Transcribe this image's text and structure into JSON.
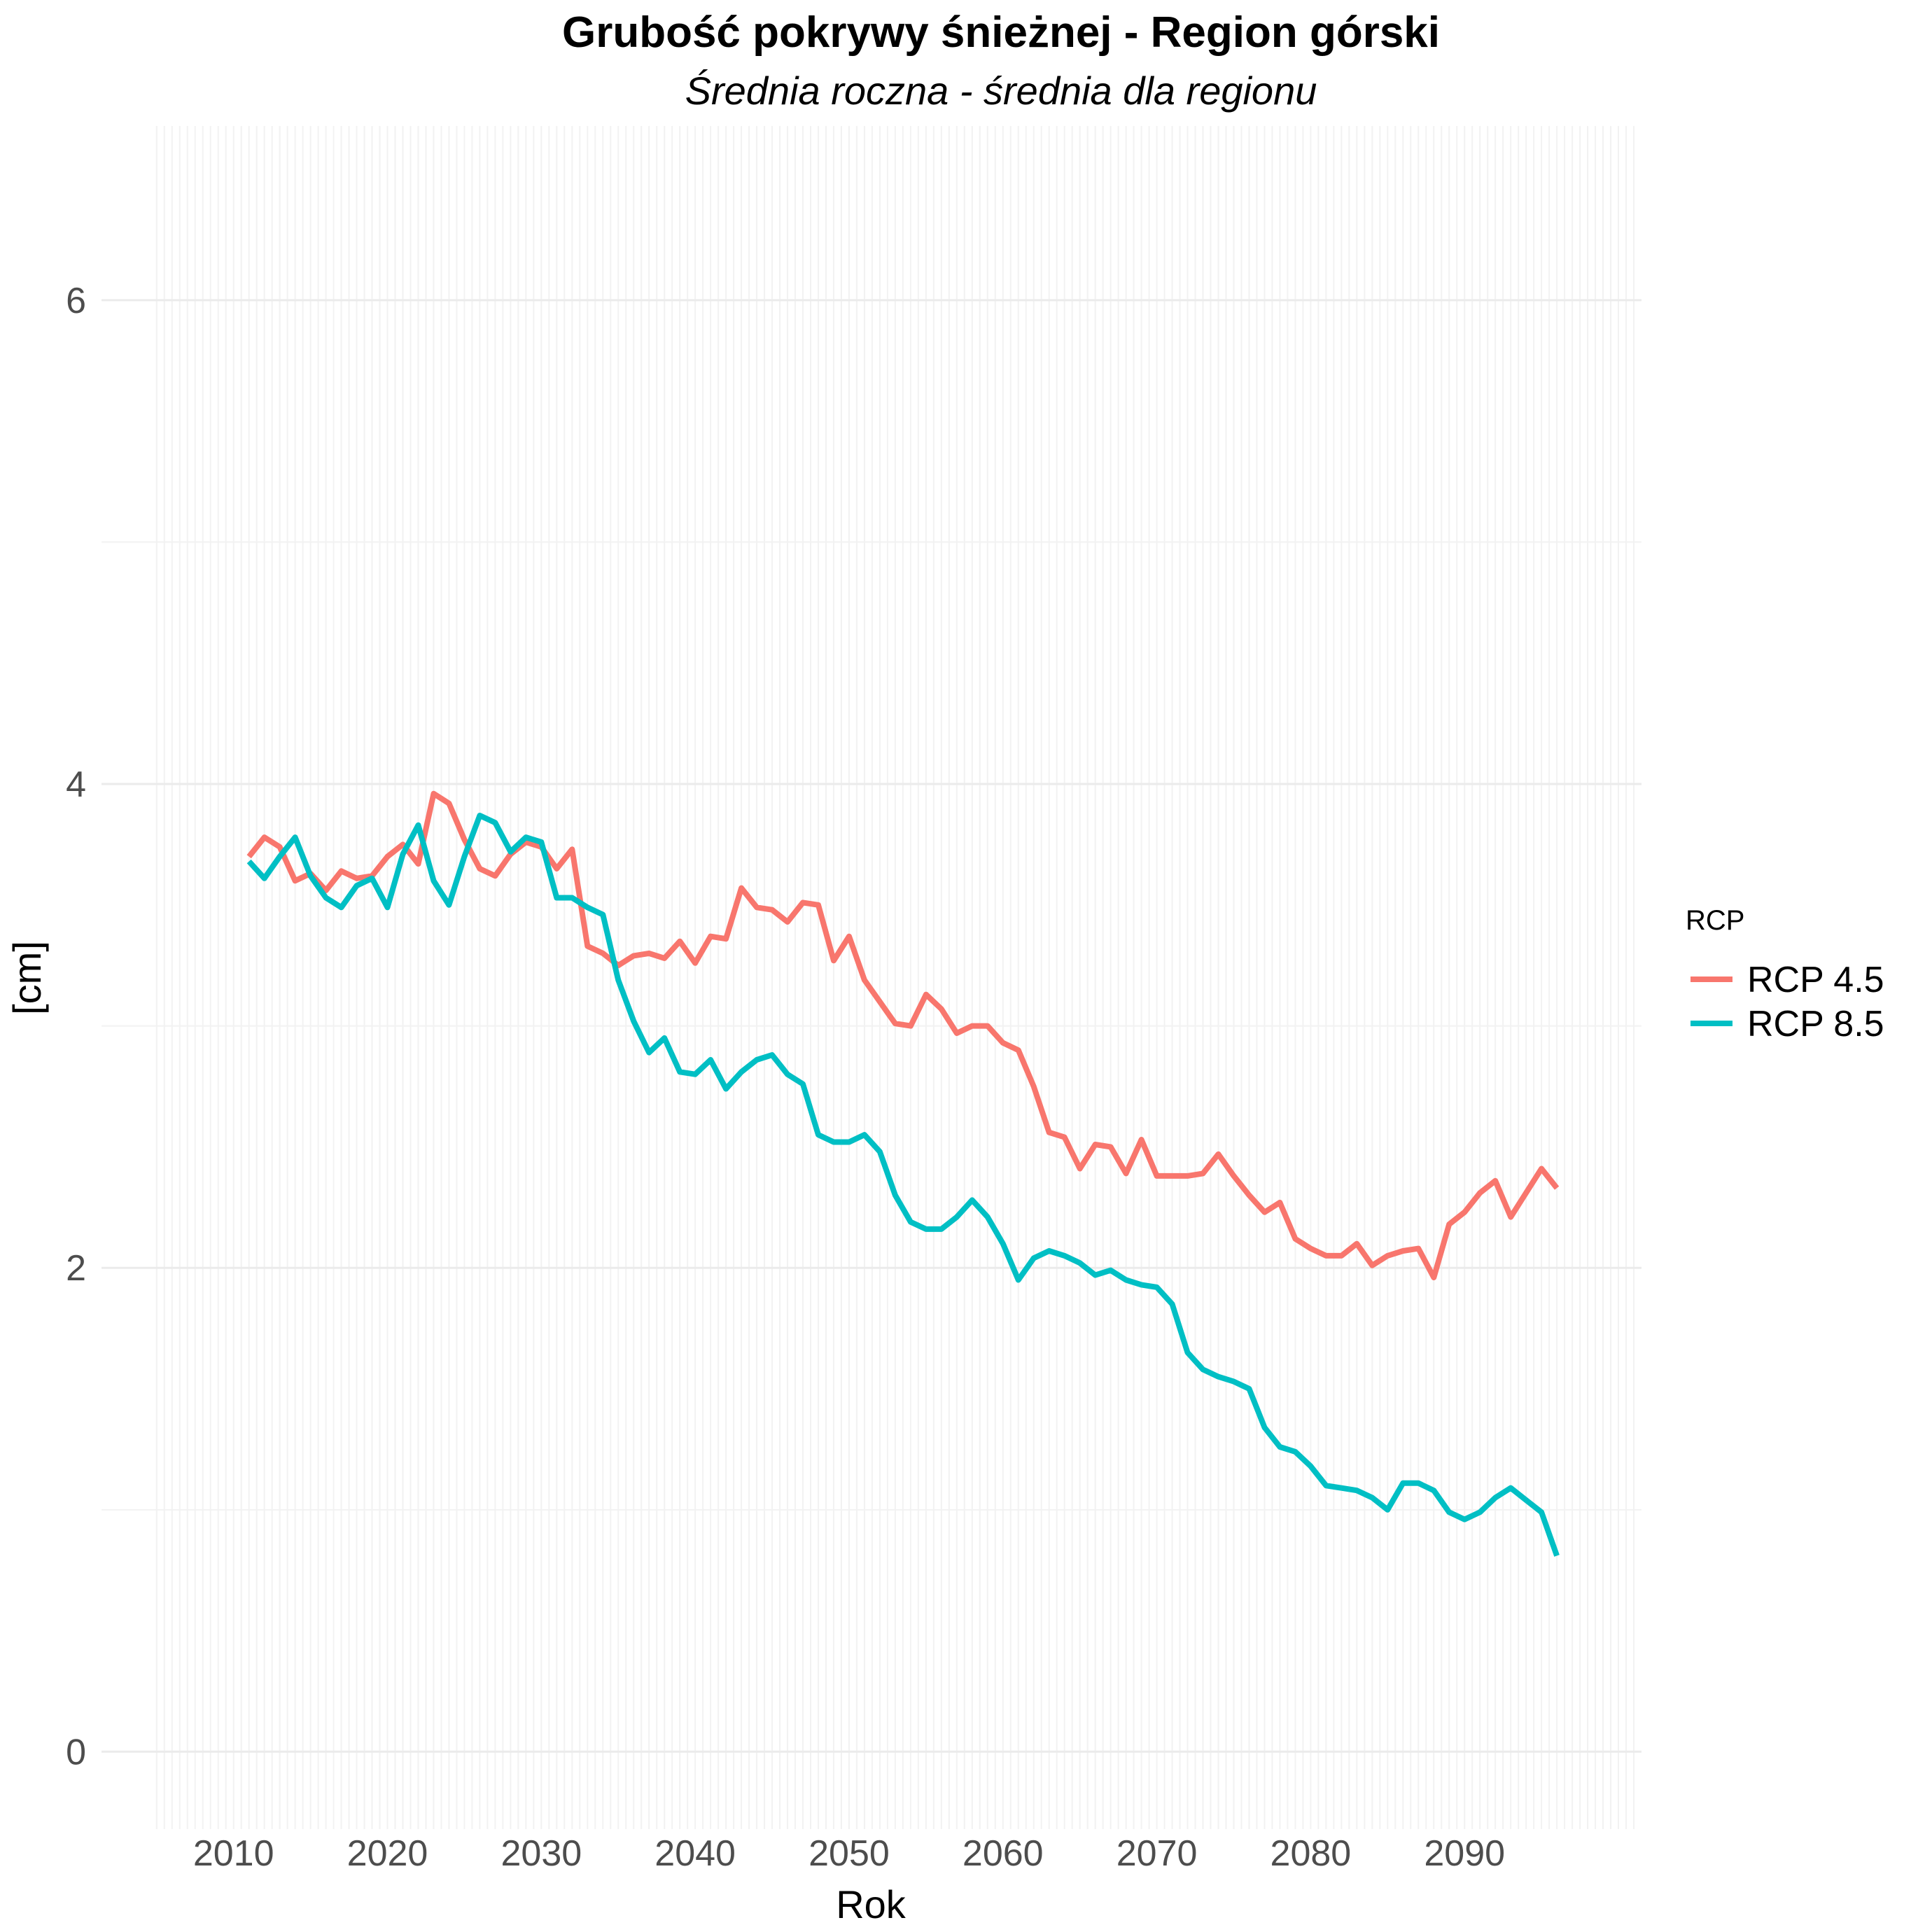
{
  "chart_data": {
    "type": "line",
    "title": "Grubość pokrywy śnieżnej - Region górski",
    "subtitle": "Średnia roczna - średnia dla regionu",
    "xlabel": "Rok",
    "ylabel": "[cm]",
    "xlim": [
      2004.6,
      2101.5
    ],
    "ylim": [
      -0.32,
      6.72
    ],
    "x_ticks": [
      2010,
      2020,
      2030,
      2040,
      2050,
      2060,
      2070,
      2080,
      2090
    ],
    "y_ticks": [
      0,
      2,
      4,
      6
    ],
    "grid": true,
    "legend": {
      "title": "RCP",
      "position": "right"
    },
    "x": [
      2011,
      2012,
      2013,
      2014,
      2015,
      2016,
      2017,
      2018,
      2019,
      2020,
      2021,
      2022,
      2023,
      2024,
      2025,
      2026,
      2027,
      2028,
      2029,
      2030,
      2031,
      2032,
      2033,
      2034,
      2035,
      2036,
      2037,
      2038,
      2039,
      2040,
      2041,
      2042,
      2043,
      2044,
      2045,
      2046,
      2047,
      2048,
      2049,
      2050,
      2051,
      2052,
      2053,
      2054,
      2055,
      2056,
      2057,
      2058,
      2059,
      2060,
      2061,
      2062,
      2063,
      2064,
      2065,
      2066,
      2067,
      2068,
      2069,
      2070,
      2071,
      2072,
      2073,
      2074,
      2075,
      2076,
      2077,
      2078,
      2079,
      2080,
      2081,
      2082,
      2083,
      2084,
      2085,
      2086,
      2087,
      2088,
      2089,
      2090,
      2091,
      2092,
      2093,
      2094,
      2095,
      2096
    ],
    "series": [
      {
        "name": "RCP 4.5",
        "color": "#f8766d",
        "values": [
          3.7,
          3.78,
          3.74,
          3.6,
          3.63,
          3.56,
          3.64,
          3.61,
          3.62,
          3.7,
          3.75,
          3.67,
          3.96,
          3.92,
          3.77,
          3.65,
          3.62,
          3.71,
          3.76,
          3.74,
          3.65,
          3.73,
          3.33,
          3.3,
          3.25,
          3.29,
          3.3,
          3.28,
          3.35,
          3.26,
          3.37,
          3.36,
          3.57,
          3.49,
          3.48,
          3.43,
          3.51,
          3.5,
          3.27,
          3.37,
          3.19,
          3.1,
          3.01,
          3.0,
          3.13,
          3.07,
          2.97,
          3.0,
          3.0,
          2.93,
          2.9,
          2.75,
          2.56,
          2.54,
          2.41,
          2.51,
          2.5,
          2.39,
          2.53,
          2.38,
          2.38,
          2.38,
          2.39,
          2.47,
          2.38,
          2.3,
          2.23,
          2.27,
          2.12,
          2.08,
          2.05,
          2.05,
          2.1,
          2.01,
          2.05,
          2.07,
          2.08,
          1.96,
          2.18,
          2.23,
          2.31,
          2.36,
          2.21,
          2.31,
          2.41,
          2.33
        ]
      },
      {
        "name": "RCP 8.5",
        "color": "#00bfc4",
        "values": [
          3.68,
          3.61,
          3.7,
          3.78,
          3.62,
          3.53,
          3.49,
          3.58,
          3.61,
          3.49,
          3.71,
          3.83,
          3.6,
          3.5,
          3.7,
          3.87,
          3.84,
          3.72,
          3.78,
          3.76,
          3.53,
          3.53,
          3.49,
          3.46,
          3.19,
          3.02,
          2.89,
          2.95,
          2.81,
          2.8,
          2.86,
          2.74,
          2.81,
          2.86,
          2.88,
          2.8,
          2.76,
          2.55,
          2.52,
          2.52,
          2.55,
          2.48,
          2.3,
          2.19,
          2.16,
          2.16,
          2.21,
          2.28,
          2.21,
          2.1,
          1.95,
          2.04,
          2.07,
          2.05,
          2.02,
          1.97,
          1.99,
          1.95,
          1.93,
          1.92,
          1.85,
          1.65,
          1.58,
          1.55,
          1.53,
          1.5,
          1.34,
          1.26,
          1.24,
          1.18,
          1.1,
          1.09,
          1.08,
          1.05,
          1.0,
          1.11,
          1.11,
          1.08,
          0.99,
          0.96,
          0.99,
          1.05,
          1.09,
          1.04,
          0.99,
          0.81
        ]
      }
    ]
  }
}
